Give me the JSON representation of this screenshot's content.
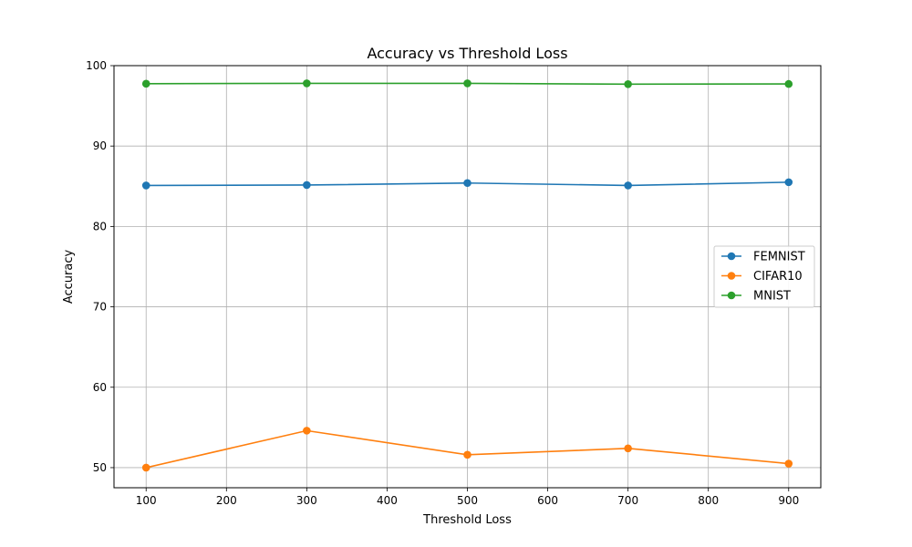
{
  "chart_data": {
    "type": "line",
    "title": "Accuracy vs Threshold Loss",
    "xlabel": "Threshold Loss",
    "ylabel": "Accuracy",
    "x": [
      100,
      300,
      500,
      700,
      900
    ],
    "xlim": [
      60,
      940
    ],
    "ylim": [
      47.5,
      100
    ],
    "xticks": [
      100,
      200,
      300,
      400,
      500,
      600,
      700,
      800,
      900
    ],
    "yticks": [
      50,
      60,
      70,
      80,
      90,
      100
    ],
    "grid": true,
    "legend_position": "center-right",
    "series": [
      {
        "name": "FEMNIST",
        "color": "#1f77b4",
        "values": [
          85.1,
          85.15,
          85.4,
          85.1,
          85.5
        ]
      },
      {
        "name": "CIFAR10",
        "color": "#ff7f0e",
        "values": [
          50.0,
          54.6,
          51.6,
          52.4,
          50.5
        ]
      },
      {
        "name": "MNIST",
        "color": "#2ca02c",
        "values": [
          97.75,
          97.8,
          97.8,
          97.7,
          97.72
        ]
      }
    ]
  }
}
